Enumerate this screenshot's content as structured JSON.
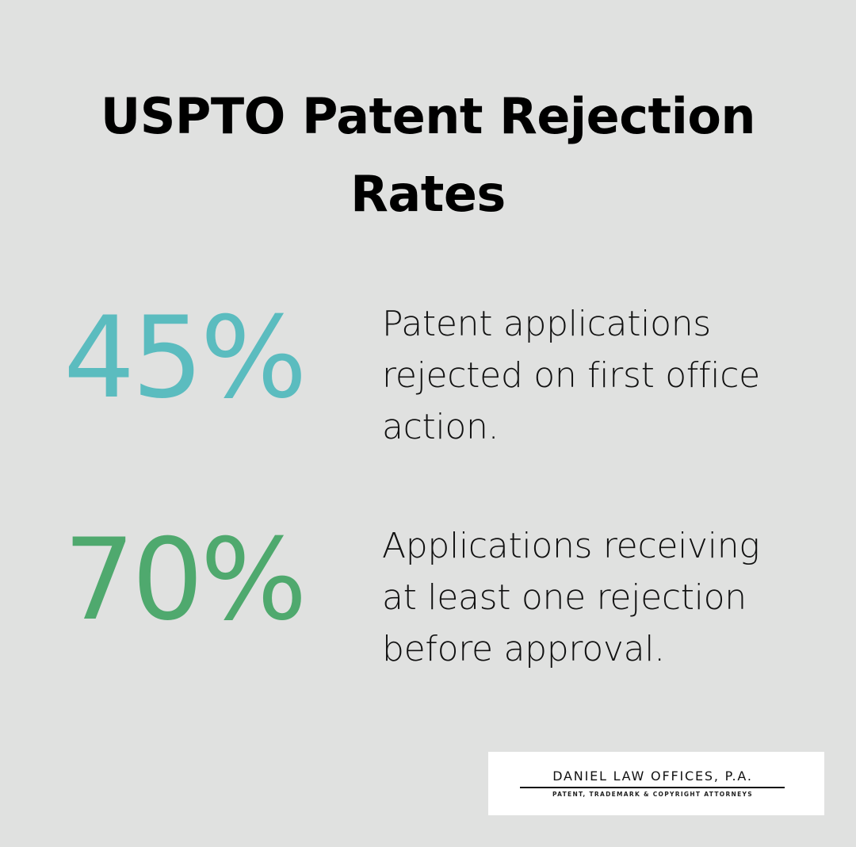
{
  "title": {
    "line1": "USPTO Patent Rejection",
    "line2": "Rates"
  },
  "stats": [
    {
      "value": "45%",
      "color": "#5bbcbf",
      "description_lines": [
        "Patent applications",
        "rejected on first office",
        "action."
      ]
    },
    {
      "value": "70%",
      "color": "#4fa96e",
      "description_lines": [
        "Applications receiving",
        "at least one rejection",
        "before approval."
      ]
    }
  ],
  "logo": {
    "name": "DANIEL LAW OFFICES, P.A.",
    "tagline": "PATENT, TRADEMARK & COPYRIGHT ATTORNEYS"
  },
  "colors": {
    "background": "#e0e1e0",
    "title": "#000000",
    "text": "#111111"
  }
}
